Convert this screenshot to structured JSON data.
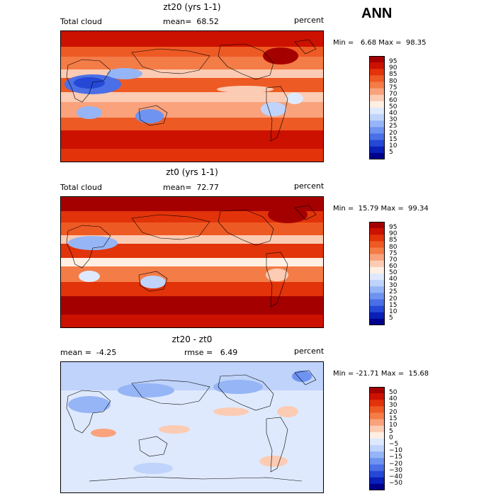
{
  "season": "ANN",
  "panels": [
    {
      "title": "zt20 (yrs 1-1)",
      "left_label": "Total cloud",
      "center_label": "mean=  68.52",
      "right_label": "percent",
      "minmax": "Min =   6.68 Max =  98.35",
      "colorbar": {
        "labels": [
          "95",
          "90",
          "85",
          "80",
          "75",
          "70",
          "60",
          "50",
          "40",
          "30",
          "25",
          "20",
          "15",
          "10",
          "5"
        ],
        "colors": [
          "#a50000",
          "#cc1100",
          "#e2330a",
          "#ee5a24",
          "#f47c47",
          "#f9a27c",
          "#fccbb3",
          "#ffefe3",
          "#dfe9fd",
          "#bfd3fb",
          "#95b5f6",
          "#6e93f0",
          "#4a6fe6",
          "#2548d6",
          "#0a20b8",
          "#00008b"
        ]
      }
    },
    {
      "title": "zt0 (yrs 1-1)",
      "left_label": "Total cloud",
      "center_label": "mean=  72.77",
      "right_label": "percent",
      "minmax": "Min =  15.79 Max =  99.34",
      "colorbar": {
        "labels": [
          "95",
          "90",
          "85",
          "80",
          "75",
          "70",
          "60",
          "50",
          "40",
          "30",
          "25",
          "20",
          "15",
          "10",
          "5"
        ],
        "colors": [
          "#a50000",
          "#cc1100",
          "#e2330a",
          "#ee5a24",
          "#f47c47",
          "#f9a27c",
          "#fccbb3",
          "#ffefe3",
          "#dfe9fd",
          "#bfd3fb",
          "#95b5f6",
          "#6e93f0",
          "#4a6fe6",
          "#2548d6",
          "#0a20b8",
          "#00008b"
        ]
      }
    },
    {
      "title": "zt20 - zt0",
      "left_label": "mean =  -4.25",
      "center_label": "rmse =   6.49",
      "right_label": "percent",
      "minmax": "Min = -21.71 Max =  15.68",
      "colorbar": {
        "labels": [
          "50",
          "40",
          "30",
          "20",
          "15",
          "10",
          "5",
          "0",
          "−5",
          "−10",
          "−15",
          "−20",
          "−30",
          "−40",
          "−50"
        ],
        "colors": [
          "#a50000",
          "#cc1100",
          "#e2330a",
          "#ee5a24",
          "#f47c47",
          "#f9a27c",
          "#fccbb3",
          "#ffefe3",
          "#dfe9fd",
          "#bfd3fb",
          "#95b5f6",
          "#6e93f0",
          "#4a6fe6",
          "#2548d6",
          "#0a20b8",
          "#00008b"
        ]
      }
    }
  ],
  "chart_data": [
    {
      "type": "heatmap",
      "title": "zt20 (yrs 1-1)",
      "field": "Total cloud",
      "units": "percent",
      "mean": 68.52,
      "min": 6.68,
      "max": 98.35,
      "colorbar_levels": [
        5,
        10,
        15,
        20,
        25,
        30,
        40,
        50,
        60,
        70,
        75,
        80,
        85,
        90,
        95
      ]
    },
    {
      "type": "heatmap",
      "title": "zt0 (yrs 1-1)",
      "field": "Total cloud",
      "units": "percent",
      "mean": 72.77,
      "min": 15.79,
      "max": 99.34,
      "colorbar_levels": [
        5,
        10,
        15,
        20,
        25,
        30,
        40,
        50,
        60,
        70,
        75,
        80,
        85,
        90,
        95
      ]
    },
    {
      "type": "heatmap",
      "title": "zt20 - zt0",
      "units": "percent",
      "mean": -4.25,
      "rmse": 6.49,
      "min": -21.71,
      "max": 15.68,
      "colorbar_levels": [
        -50,
        -40,
        -30,
        -20,
        -15,
        -10,
        -5,
        0,
        5,
        10,
        15,
        20,
        30,
        40,
        50
      ]
    }
  ]
}
